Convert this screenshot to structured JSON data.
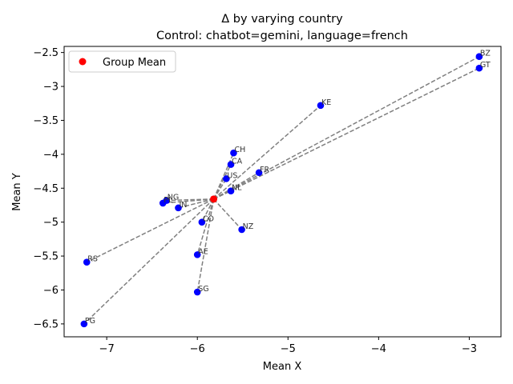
{
  "chart_data": {
    "type": "scatter",
    "title": "Δ by varying country",
    "subtitle": "Control: chatbot=gemini, language=french",
    "xlabel": "Mean X",
    "ylabel": "Mean Y",
    "xlim": [
      -7.47,
      -2.65
    ],
    "ylim": [
      -6.69,
      -2.41
    ],
    "xticks": [
      -7,
      -6,
      -5,
      -4,
      -3
    ],
    "yticks": [
      -6.5,
      -6.0,
      -5.5,
      -5.0,
      -4.5,
      -4.0,
      -3.5,
      -3.0,
      -2.5
    ],
    "grid": false,
    "legend": {
      "placement": "top-left",
      "entries": [
        "Group Mean"
      ]
    },
    "colors": {
      "points": "#0000ff",
      "mean": "#ff0000",
      "lines": "#808080"
    },
    "group_mean": {
      "x": -5.82,
      "y": -4.66
    },
    "points": [
      {
        "label": "BZ",
        "x": -2.89,
        "y": -2.56
      },
      {
        "label": "GT",
        "x": -2.89,
        "y": -2.73
      },
      {
        "label": "KE",
        "x": -4.64,
        "y": -3.28
      },
      {
        "label": "CH",
        "x": -5.6,
        "y": -3.98
      },
      {
        "label": "CA",
        "x": -5.63,
        "y": -4.15
      },
      {
        "label": "US",
        "x": -5.68,
        "y": -4.36
      },
      {
        "label": "FR",
        "x": -5.32,
        "y": -4.27
      },
      {
        "label": "NL",
        "x": -5.63,
        "y": -4.54
      },
      {
        "label": "NG",
        "x": -6.34,
        "y": -4.68
      },
      {
        "label": "PL",
        "x": -6.38,
        "y": -4.72
      },
      {
        "label": "IN",
        "x": -6.21,
        "y": -4.79
      },
      {
        "label": "CO",
        "x": -5.95,
        "y": -5.0
      },
      {
        "label": "NZ",
        "x": -5.51,
        "y": -5.11
      },
      {
        "label": "AE",
        "x": -6.0,
        "y": -5.48
      },
      {
        "label": "RS",
        "x": -7.22,
        "y": -5.59
      },
      {
        "label": "SG",
        "x": -6.0,
        "y": -6.03
      },
      {
        "label": "PG",
        "x": -7.25,
        "y": -6.5
      }
    ]
  }
}
